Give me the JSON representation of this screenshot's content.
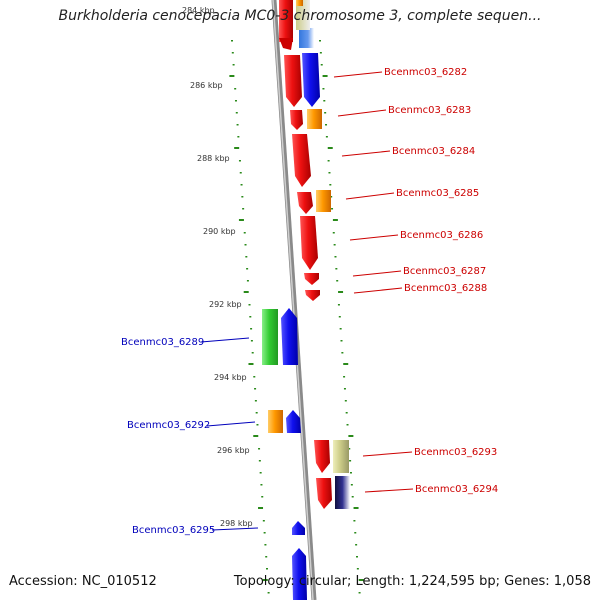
{
  "title": "Burkholderia cenocepacia MC0-3 chromosome 3, complete sequen...",
  "top_cut_label": "284 kbp",
  "footer": {
    "accession": "Accession: NC_010512",
    "summary": "Topology: circular; Length: 1,224,595 bp; Genes: 1,058"
  },
  "colors": {
    "backbone": "#8a8a8a",
    "tick": "#2a8a1a",
    "label_right": "#cc0000",
    "label_left": "#0000bb",
    "red": "#ee1111",
    "blue": "#1010ee",
    "orange": "#ff9900",
    "green": "#33cc33",
    "khaki": "#cccc88",
    "navy": "#202070"
  },
  "kbp_labels": [
    "286 kbp",
    "288 kbp",
    "290 kbp",
    "292 kbp",
    "294 kbp",
    "296 kbp",
    "298 kbp"
  ],
  "gene_labels": [
    {
      "text": "Bcenmc03_6282",
      "side": "right"
    },
    {
      "text": "Bcenmc03_6283",
      "side": "right"
    },
    {
      "text": "Bcenmc03_6284",
      "side": "right"
    },
    {
      "text": "Bcenmc03_6285",
      "side": "right"
    },
    {
      "text": "Bcenmc03_6286",
      "side": "right"
    },
    {
      "text": "Bcenmc03_6287",
      "side": "right"
    },
    {
      "text": "Bcenmc03_6288",
      "side": "right"
    },
    {
      "text": "Bcenmc03_6289",
      "side": "left"
    },
    {
      "text": "Bcenmc03_6292",
      "side": "left"
    },
    {
      "text": "Bcenmc03_6293",
      "side": "right"
    },
    {
      "text": "Bcenmc03_6294",
      "side": "right"
    },
    {
      "text": "Bcenmc03_6295",
      "side": "left"
    }
  ]
}
